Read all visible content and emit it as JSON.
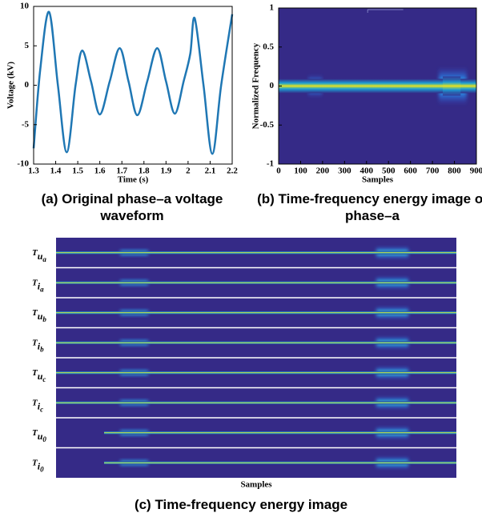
{
  "chart_data": [
    {
      "type": "line",
      "caption": "(a) Original phase–a voltage waveform",
      "xlabel": "Time (s)",
      "ylabel": "Voltage (kV)",
      "x": [
        1.3,
        1.33,
        1.37,
        1.41,
        1.45,
        1.49,
        1.52,
        1.56,
        1.6,
        1.645,
        1.69,
        1.73,
        1.77,
        1.815,
        1.86,
        1.9,
        1.94,
        1.98,
        2.01,
        2.03,
        2.07,
        2.11,
        2.15,
        2.2
      ],
      "series": [
        {
          "color": "#1f77b4",
          "values": [
            -8,
            2,
            9.3,
            0,
            -8.5,
            0,
            4.4,
            0.5,
            -3.7,
            0.5,
            4.7,
            0.5,
            -3.8,
            0.5,
            4.7,
            0.5,
            -3.6,
            0.5,
            4,
            8.5,
            0,
            -8.7,
            0,
            9
          ]
        }
      ],
      "xlim": [
        1.3,
        2.2
      ],
      "ylim": [
        -10,
        10
      ],
      "xticks": [
        1.3,
        1.4,
        1.5,
        1.6,
        1.7,
        1.8,
        1.9,
        2,
        2.1,
        2.2
      ],
      "yticks": [
        -10,
        -5,
        0,
        5,
        10
      ]
    },
    {
      "type": "image",
      "caption": "(b) Time-frequency energy image of phase–a",
      "xlabel": "Samples",
      "ylabel": "Normalized Frequency",
      "xlim": [
        0,
        900
      ],
      "ylim": [
        -1,
        1
      ],
      "xticks": [
        0,
        100,
        200,
        300,
        400,
        500,
        600,
        700,
        800,
        900
      ],
      "yticks": [
        -1,
        -0.5,
        0,
        0.5,
        1
      ]
    },
    {
      "type": "image-rows",
      "caption": "(c) Time-frequency energy image",
      "xlabel": "Samples",
      "rows": [
        {
          "main": "T",
          "sub": "u",
          "subsub": "a"
        },
        {
          "main": "T",
          "sub": "i",
          "subsub": "a"
        },
        {
          "main": "T",
          "sub": "u",
          "subsub": "b"
        },
        {
          "main": "T",
          "sub": "i",
          "subsub": "b"
        },
        {
          "main": "T",
          "sub": "u",
          "subsub": "c"
        },
        {
          "main": "T",
          "sub": "i",
          "subsub": "c"
        },
        {
          "main": "T",
          "sub": "u",
          "subsub": "0"
        },
        {
          "main": "T",
          "sub": "i",
          "subsub": "0"
        }
      ]
    }
  ]
}
